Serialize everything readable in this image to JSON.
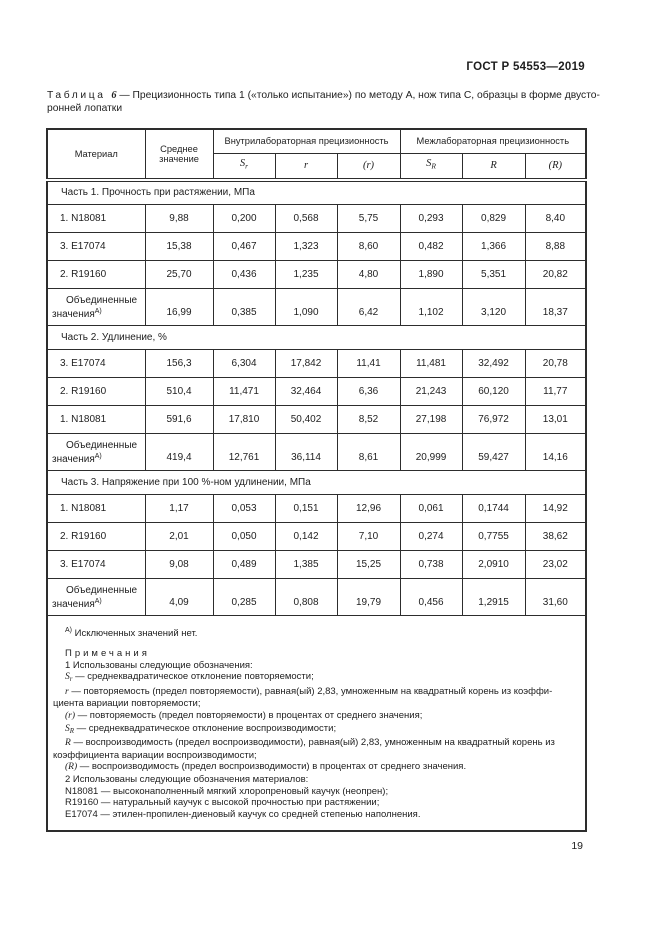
{
  "page": {
    "doc_header": "ГОСТ Р 54553—2019",
    "page_number": "19"
  },
  "caption": {
    "label": "Таблица",
    "number": "6",
    "line1_rest": "— Прецизионность типа 1 («только испытание») по методу А, нож типа С, образцы в форме двусто-",
    "line2": "ронней лопатки"
  },
  "table": {
    "headers": {
      "material": "Материал",
      "mean": "Среднее значение",
      "intralab": "Внутрилабораторная прецизионность",
      "interlab": "Межлабораторная прецизионность",
      "sr": {
        "base": "S",
        "sub": "r"
      },
      "r": "r",
      "r_pct": "(r)",
      "sR": {
        "base": "S",
        "sub": "R"
      },
      "R": "R",
      "R_pct": "(R)"
    },
    "sections": [
      {
        "title": "Часть 1. Прочность при растяжении, МПа",
        "rows": [
          {
            "material": "1. N18081",
            "values": [
              "9,88",
              "0,200",
              "0,568",
              "5,75",
              "0,293",
              "0,829",
              "8,40"
            ]
          },
          {
            "material": "3. Е17074",
            "values": [
              "15,38",
              "0,467",
              "1,323",
              "8,60",
              "0,482",
              "1,366",
              "8,88"
            ]
          },
          {
            "material": "2. R19160",
            "values": [
              "25,70",
              "0,436",
              "1,235",
              "4,80",
              "1,890",
              "5,351",
              "20,82"
            ]
          },
          {
            "combined": true,
            "material_lines": [
              "Объединенные",
              "значения"
            ],
            "marker": "А)",
            "values": [
              "16,99",
              "0,385",
              "1,090",
              "6,42",
              "1,102",
              "3,120",
              "18,37"
            ]
          }
        ]
      },
      {
        "title": "Часть 2. Удлинение, %",
        "rows": [
          {
            "material": "3. Е17074",
            "values": [
              "156,3",
              "6,304",
              "17,842",
              "11,41",
              "11,481",
              "32,492",
              "20,78"
            ]
          },
          {
            "material": "2. R19160",
            "values": [
              "510,4",
              "11,471",
              "32,464",
              "6,36",
              "21,243",
              "60,120",
              "11,77"
            ]
          },
          {
            "material": "1. N18081",
            "values": [
              "591,6",
              "17,810",
              "50,402",
              "8,52",
              "27,198",
              "76,972",
              "13,01"
            ]
          },
          {
            "combined": true,
            "material_lines": [
              "Объединенные",
              "значения"
            ],
            "marker": "А)",
            "values": [
              "419,4",
              "12,761",
              "36,114",
              "8,61",
              "20,999",
              "59,427",
              "14,16"
            ]
          }
        ]
      },
      {
        "title": "Часть 3. Напряжение при 100 %-ном удлинении, МПа",
        "rows": [
          {
            "material": "1. N18081",
            "values": [
              "1,17",
              "0,053",
              "0,151",
              "12,96",
              "0,061",
              "0,1744",
              "14,92"
            ]
          },
          {
            "material": "2. R19160",
            "values": [
              "2,01",
              "0,050",
              "0,142",
              "7,10",
              "0,274",
              "0,7755",
              "38,62"
            ]
          },
          {
            "material": "3. Е17074",
            "values": [
              "9,08",
              "0,489",
              "1,385",
              "15,25",
              "0,738",
              "2,0910",
              "23,02"
            ]
          },
          {
            "combined": true,
            "material_lines": [
              "Объединенные",
              "значения"
            ],
            "marker": "А)",
            "values": [
              "4,09",
              "0,285",
              "0,808",
              "19,79",
              "0,456",
              "1,2915",
              "31,60"
            ]
          }
        ]
      }
    ],
    "footnote": {
      "marker": "А)",
      "text": " Исключенных значений нет."
    },
    "notes": [
      {
        "ind": true,
        "gap": true,
        "parts": [
          {
            "t": "Примечания",
            "st": "sp"
          }
        ]
      },
      {
        "ind": true,
        "parts": [
          {
            "t": "1 Использованы следующие обозначения:"
          }
        ]
      },
      {
        "ind": true,
        "parts": [
          {
            "t": "S",
            "st": "i"
          },
          {
            "t": "r",
            "st": "isub"
          },
          {
            "t": " — среднеквадратическое отклонение повторяемости;"
          }
        ]
      },
      {
        "ind": true,
        "parts": [
          {
            "t": "r",
            "st": "i"
          },
          {
            "t": " — повторяемость (предел повторяемости), равная(ый) 2,83, умноженным на квадратный корень из коэффи-"
          }
        ]
      },
      {
        "ind": false,
        "parts": [
          {
            "t": "циента вариации повторяемости;"
          }
        ]
      },
      {
        "ind": true,
        "parts": [
          {
            "t": "(r)",
            "st": "i"
          },
          {
            "t": " — повторяемость (предел повторяемости) в процентах от среднего значения;"
          }
        ]
      },
      {
        "ind": true,
        "parts": [
          {
            "t": "S",
            "st": "i"
          },
          {
            "t": "R",
            "st": "isub"
          },
          {
            "t": " — среднеквадратическое отклонение воспроизводимости;"
          }
        ]
      },
      {
        "ind": true,
        "parts": [
          {
            "t": "R",
            "st": "i"
          },
          {
            "t": " — воспроизводимость (предел воспроизводимости), равная(ый) 2,83, умноженным на квадратный корень из"
          }
        ]
      },
      {
        "ind": false,
        "parts": [
          {
            "t": "коэффициента вариации воспроизводимости;"
          }
        ]
      },
      {
        "ind": true,
        "parts": [
          {
            "t": "(R)",
            "st": "i"
          },
          {
            "t": " — воспроизводимость (предел воспроизводимости) в процентах от среднего значения."
          }
        ]
      },
      {
        "ind": true,
        "parts": [
          {
            "t": "2 Использованы следующие обозначения материалов:"
          }
        ]
      },
      {
        "ind": true,
        "parts": [
          {
            "t": "N18081 — высоконаполненный мягкий хлоропреновый каучук (неопрен);"
          }
        ]
      },
      {
        "ind": true,
        "parts": [
          {
            "t": "R19160 — натуральный каучук с высокой прочностью при растяжении;"
          }
        ]
      },
      {
        "ind": true,
        "parts": [
          {
            "t": "Е17074 — этилен-пропилен-диеновый каучук со средней степенью наполнения."
          }
        ]
      }
    ]
  }
}
